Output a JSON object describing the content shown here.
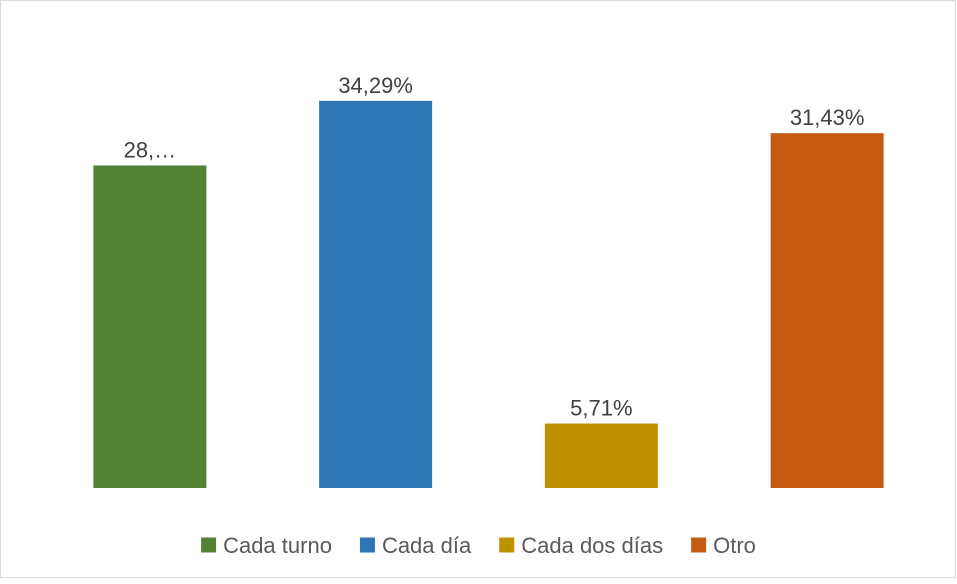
{
  "chart_data": {
    "type": "bar",
    "series": [
      {
        "name": "Cada turno",
        "color": "#548235",
        "values": [
          28.57
        ],
        "value_labels": [
          "28,…"
        ]
      },
      {
        "name": "Cada día",
        "color": "#2e75b6",
        "values": [
          34.29
        ],
        "value_labels": [
          "34,29%"
        ]
      },
      {
        "name": "Cada dos días",
        "color": "#bf9000",
        "values": [
          5.71
        ],
        "value_labels": [
          "5,71%"
        ]
      },
      {
        "name": "Otro",
        "color": "#c55a11",
        "values": [
          31.43
        ],
        "value_labels": [
          "31,43%"
        ]
      }
    ],
    "ylim": [
      0,
      40
    ],
    "legend": "bottom"
  }
}
